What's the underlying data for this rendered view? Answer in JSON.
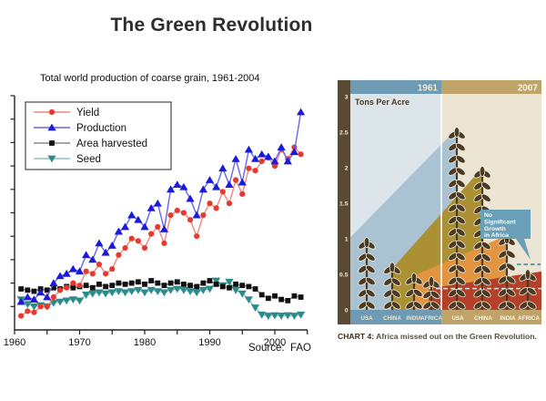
{
  "page": {
    "title": "The Green Revolution"
  },
  "line_chart": {
    "subtitle": "Total world production of coarse grain, 1961-2004",
    "source_label": "Source:  FAO"
  },
  "infographic": {
    "ylabel": "Tons Per Acre",
    "annotation_lines": [
      "No",
      "Significant",
      "Growth",
      "in Africa"
    ],
    "caption_bold": "CHART 4:",
    "caption_text": " Africa missed out on the Green Revolution.",
    "colors": {
      "axis_strip": "#5b4a33",
      "bg_1961": "#dce6ea",
      "bg_2007": "#ede5d4",
      "header_1961": "#6e9ab4",
      "header_2007": "#c0a369",
      "header_text_1961": "#f3ecd7",
      "header_text_2007": "#faf4e4",
      "wheat": "#4a3a24",
      "wheat_outline": "#efe8d6",
      "wedge_usa": "#a9c3d2",
      "wedge_china": "#ab9134",
      "wedge_india": "#e39440",
      "wedge_africa": "#b5402a",
      "callout": "#69a0b7",
      "dash_light": "#d6e4ea",
      "dash_blue": "#5e93ac",
      "footer_text_1961": "#efe3c4",
      "footer_text_2007": "#fdf6e0",
      "tick_text": "#f0e9d8"
    }
  },
  "chart_data": [
    {
      "type": "line",
      "title": "Total world production of coarse grain, 1961-2004",
      "xlabel": "",
      "ylabel": "",
      "note": "y axis shows unlabeled tick marks; values are relative index units estimated from pixel positions, scale 0-10",
      "ylim": [
        0,
        10
      ],
      "x_range": [
        1960,
        2005
      ],
      "x_ticks": [
        1960,
        1965,
        1970,
        1975,
        1980,
        1985,
        1990,
        1995,
        2000,
        2005
      ],
      "x_tick_labels": [
        "1960",
        "1970",
        "1980",
        "1990",
        "2000"
      ],
      "legend_position": "top-left",
      "source": "Source:  FAO",
      "years": [
        1961,
        1962,
        1963,
        1964,
        1965,
        1966,
        1967,
        1968,
        1969,
        1970,
        1971,
        1972,
        1973,
        1974,
        1975,
        1976,
        1977,
        1978,
        1979,
        1980,
        1981,
        1982,
        1983,
        1984,
        1985,
        1986,
        1987,
        1988,
        1989,
        1990,
        1991,
        1992,
        1993,
        1994,
        1995,
        1996,
        1997,
        1998,
        1999,
        2000,
        2001,
        2002,
        2003,
        2004
      ],
      "series": [
        {
          "name": "Yield",
          "marker": "circle",
          "marker_color": "#e8392e",
          "line_color": "#f2887b",
          "values": [
            0.6,
            0.8,
            0.75,
            1.0,
            1.0,
            1.4,
            1.7,
            1.8,
            2.0,
            1.9,
            2.5,
            2.4,
            2.8,
            2.4,
            2.6,
            3.2,
            3.5,
            3.9,
            3.8,
            3.5,
            4.1,
            4.4,
            3.7,
            4.9,
            5.1,
            5.0,
            4.7,
            4.0,
            4.9,
            5.4,
            5.2,
            5.9,
            5.4,
            6.4,
            5.8,
            6.9,
            6.8,
            7.2,
            7.35,
            7.0,
            7.7,
            7.3,
            7.8,
            7.5
          ]
        },
        {
          "name": "Production",
          "marker": "triangle-up",
          "marker_color": "#1a1ad8",
          "line_color": "#6565ef",
          "values": [
            1.2,
            1.4,
            1.3,
            1.6,
            1.4,
            2.0,
            2.3,
            2.4,
            2.6,
            2.5,
            3.2,
            3.0,
            3.7,
            3.3,
            3.6,
            4.2,
            4.4,
            4.9,
            4.7,
            4.4,
            5.2,
            5.4,
            4.3,
            6.0,
            6.2,
            6.1,
            5.6,
            4.9,
            6.0,
            6.4,
            6.1,
            6.9,
            6.2,
            7.3,
            6.3,
            7.7,
            7.3,
            7.5,
            7.4,
            7.2,
            7.8,
            7.2,
            7.6,
            9.3
          ]
        },
        {
          "name": "Area harvested",
          "marker": "square",
          "marker_color": "#111111",
          "line_color": "#8a8a8a",
          "values": [
            1.75,
            1.7,
            1.65,
            1.75,
            1.7,
            1.8,
            1.75,
            1.85,
            1.8,
            1.85,
            1.9,
            1.8,
            1.95,
            1.85,
            1.9,
            2.0,
            1.95,
            2.0,
            2.05,
            1.95,
            2.1,
            2.0,
            1.9,
            2.0,
            2.05,
            1.95,
            1.9,
            1.85,
            2.0,
            2.1,
            1.95,
            1.85,
            1.8,
            1.95,
            1.9,
            1.85,
            1.75,
            1.5,
            1.35,
            1.45,
            1.3,
            1.25,
            1.45,
            1.4
          ]
        },
        {
          "name": "Seed",
          "marker": "triangle-down",
          "marker_color": "#2e8b8b",
          "line_color": "#8fc2c2",
          "values": [
            1.3,
            1.1,
            1.0,
            1.05,
            1.0,
            1.15,
            1.2,
            1.25,
            1.3,
            1.25,
            1.5,
            1.55,
            1.6,
            1.55,
            1.6,
            1.65,
            1.6,
            1.65,
            1.7,
            1.6,
            1.7,
            1.65,
            1.6,
            1.7,
            1.75,
            1.7,
            1.65,
            1.6,
            1.7,
            1.75,
            2.1,
            1.9,
            2.05,
            1.7,
            1.55,
            1.3,
            0.95,
            0.65,
            0.6,
            0.62,
            0.6,
            0.62,
            0.6,
            0.65
          ]
        }
      ]
    },
    {
      "type": "bar",
      "title": "Tons Per Acre",
      "ylabel": "Tons Per Acre",
      "y_ticks": [
        3,
        2.5,
        2,
        1.5,
        1,
        0.5,
        0
      ],
      "ylim": [
        0,
        3
      ],
      "annotation": "No Significant Growth in Africa",
      "africa_reference_level": 0.3,
      "groups": [
        {
          "year": "1961",
          "categories": [
            "USA",
            "CHINA",
            "INDIA",
            "AFRICA"
          ],
          "values": [
            1.0,
            0.65,
            0.5,
            0.45
          ]
        },
        {
          "year": "2007",
          "categories": [
            "USA",
            "CHINA",
            "INDIA",
            "AFRICA"
          ],
          "values": [
            2.55,
            2.0,
            1.05,
            0.55
          ]
        }
      ],
      "caption": "CHART 4: Africa missed out on the Green Revolution."
    }
  ]
}
